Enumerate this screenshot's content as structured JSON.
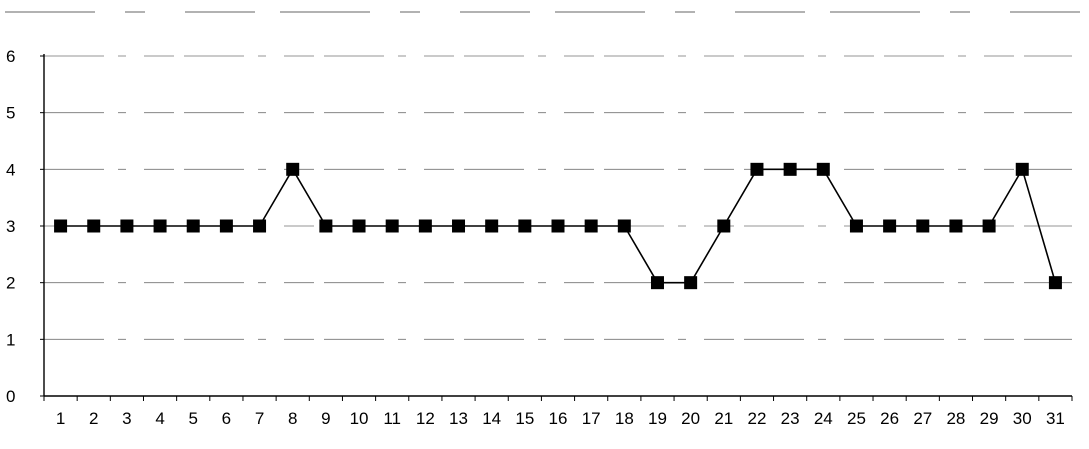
{
  "chart_data": {
    "type": "line",
    "title": "",
    "xlabel": "",
    "ylabel": "",
    "x": [
      1,
      2,
      3,
      4,
      5,
      6,
      7,
      8,
      9,
      10,
      11,
      12,
      13,
      14,
      15,
      16,
      17,
      18,
      19,
      20,
      21,
      22,
      23,
      24,
      25,
      26,
      27,
      28,
      29,
      30,
      31
    ],
    "x_tick_labels": [
      "1",
      "2",
      "3",
      "4",
      "5",
      "6",
      "7",
      "8",
      "9",
      "10",
      "11",
      "12",
      "13",
      "14",
      "15",
      "16",
      "17",
      "18",
      "19",
      "20",
      "21",
      "22",
      "23",
      "24",
      "25",
      "26",
      "27",
      "28",
      "29",
      "30",
      "31"
    ],
    "y_tick_labels": [
      "0",
      "1",
      "2",
      "3",
      "4",
      "5",
      "6"
    ],
    "ylim": [
      0,
      6
    ],
    "y_ticks": [
      0,
      1,
      2,
      3,
      4,
      5,
      6
    ],
    "grid": true,
    "legend": "none",
    "marker": "square",
    "series": [
      {
        "values": [
          3,
          3,
          3,
          3,
          3,
          3,
          3,
          4,
          3,
          3,
          3,
          3,
          3,
          3,
          3,
          3,
          3,
          3,
          2,
          2,
          3,
          4,
          4,
          4,
          3,
          3,
          3,
          3,
          3,
          4,
          2
        ],
        "color": "#000000"
      }
    ]
  }
}
